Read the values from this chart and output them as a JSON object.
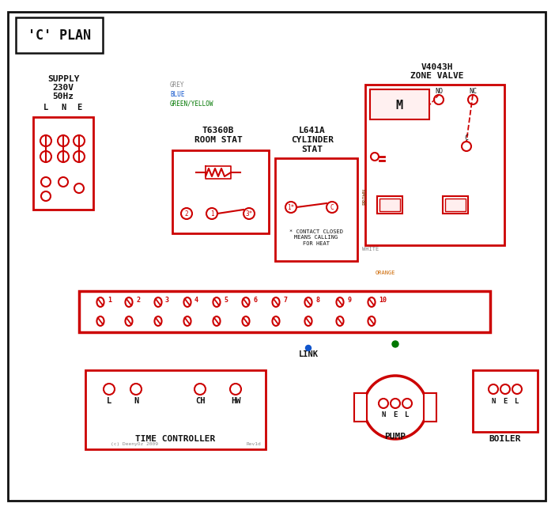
{
  "bg": "#ffffff",
  "RED": "#cc0000",
  "BLUE": "#1155cc",
  "GREEN": "#007700",
  "GREY": "#888888",
  "BROWN": "#7a3800",
  "ORANGE": "#cc6600",
  "BLACK": "#111111",
  "DKBLUE": "#1155cc",
  "title": "'C' PLAN",
  "zone_valve_lbl1": "V4043H",
  "zone_valve_lbl2": "ZONE VALVE",
  "room_stat_lbl1": "T6360B",
  "room_stat_lbl2": "ROOM STAT",
  "cyl_stat_lbl1": "L641A",
  "cyl_stat_lbl2": "CYLINDER",
  "cyl_stat_lbl3": "STAT",
  "contact_note": "* CONTACT CLOSED\nMEANS CALLING\nFOR HEAT",
  "link_lbl": "LINK",
  "tc_lbl": "TIME CONTROLLER",
  "tc_terms": [
    "L",
    "N",
    "CH",
    "HW"
  ],
  "pump_lbl": "PUMP",
  "pump_terms": [
    "N",
    "E",
    "L"
  ],
  "boiler_lbl": "BOILER",
  "boiler_terms": [
    "N",
    "E",
    "L"
  ],
  "strip_nums": [
    "1",
    "2",
    "3",
    "4",
    "5",
    "6",
    "7",
    "8",
    "9",
    "10"
  ],
  "supply_lines": [
    "SUPPLY",
    "230V",
    "50Hz"
  ],
  "lne": [
    "L",
    "N",
    "E"
  ],
  "copyright": "(c) DeenyOz 2009",
  "rev": "Rev1d",
  "grey_lbl": "GREY",
  "blue_lbl": "BLUE",
  "gy_lbl": "GREEN/YELLOW",
  "brown_lbl": "BROWN",
  "white_lbl": "WHITE",
  "orange_lbl": "ORANGE"
}
